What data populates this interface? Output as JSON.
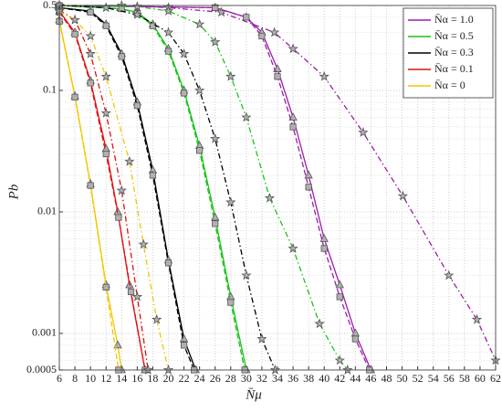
{
  "chart_data": {
    "type": "line",
    "x_label": "N̄μ",
    "y_label": "Pb",
    "xlim": [
      6,
      62
    ],
    "xticks": [
      6,
      8,
      10,
      12,
      14,
      16,
      18,
      20,
      22,
      24,
      26,
      28,
      30,
      32,
      34,
      36,
      38,
      40,
      42,
      44,
      46,
      48,
      50,
      52,
      54,
      56,
      58,
      60,
      62
    ],
    "ylim": [
      0.0005,
      0.5
    ],
    "yticks": [
      0.0005,
      0.001,
      0.01,
      0.1,
      0.5
    ],
    "log_y": true,
    "grid": true,
    "y_minor_grid": [
      0.0006,
      0.0007,
      0.0008,
      0.0009,
      0.002,
      0.003,
      0.004,
      0.005,
      0.006,
      0.007,
      0.008,
      0.009,
      0.02,
      0.03,
      0.04,
      0.05,
      0.06,
      0.07,
      0.08,
      0.09,
      0.2,
      0.3,
      0.4
    ],
    "legend_position": "upper right",
    "series": [
      {
        "name": "N̄α = 1.0",
        "color": "#9b1fa8",
        "curves": [
          {
            "style": "solid",
            "marker": "triangle",
            "x": [
              6,
              26,
              30,
              32,
              34,
              36,
              38,
              40,
              42,
              44,
              46
            ],
            "values": [
              0.5,
              0.48,
              0.4,
              0.3,
              0.15,
              0.06,
              0.02,
              0.006,
              0.0025,
              0.001,
              0.0005
            ]
          },
          {
            "style": "dashed",
            "marker": "square",
            "x": [
              6,
              26,
              30,
              32,
              34,
              36,
              38,
              40,
              42,
              44,
              45.8
            ],
            "values": [
              0.5,
              0.48,
              0.4,
              0.28,
              0.13,
              0.05,
              0.016,
              0.005,
              0.002,
              0.0009,
              0.0005
            ]
          },
          {
            "style": "dashdot",
            "marker": "star",
            "x": [
              6,
              14,
              20,
              26.8,
              33.6,
              36,
              40,
              45,
              50.1,
              56,
              59.6,
              62
            ],
            "values": [
              0.5,
              0.5,
              0.48,
              0.44,
              0.3,
              0.22,
              0.13,
              0.045,
              0.0135,
              0.003,
              0.0013,
              0.0006
            ]
          }
        ]
      },
      {
        "name": "N̄α = 0.5",
        "color": "#1cc21c",
        "curves": [
          {
            "style": "solid",
            "marker": "triangle",
            "x": [
              6,
              14,
              16,
              18,
              20,
              22,
              24,
              26,
              28,
              30
            ],
            "values": [
              0.5,
              0.47,
              0.44,
              0.35,
              0.22,
              0.1,
              0.035,
              0.009,
              0.002,
              0.0005
            ]
          },
          {
            "style": "dashed",
            "marker": "square",
            "x": [
              6,
              14,
              16,
              18,
              20,
              22,
              24,
              26,
              28,
              29.8
            ],
            "values": [
              0.5,
              0.47,
              0.43,
              0.34,
              0.21,
              0.095,
              0.032,
              0.008,
              0.0018,
              0.0005
            ]
          },
          {
            "style": "dashdot",
            "marker": "star",
            "x": [
              6,
              16,
              20,
              24,
              26,
              28,
              30,
              33,
              36,
              39.4,
              42,
              43
            ],
            "values": [
              0.5,
              0.49,
              0.45,
              0.35,
              0.25,
              0.13,
              0.06,
              0.013,
              0.005,
              0.0012,
              0.0006,
              0.0005
            ]
          }
        ]
      },
      {
        "name": "N̄α = 0.3",
        "color": "#000000",
        "curves": [
          {
            "style": "solid",
            "marker": "triangle",
            "x": [
              6,
              10,
              12,
              14,
              16,
              18,
              20,
              22,
              23.5
            ],
            "values": [
              0.48,
              0.45,
              0.35,
              0.2,
              0.08,
              0.022,
              0.004,
              0.0009,
              0.0005
            ]
          },
          {
            "style": "dashed",
            "marker": "square",
            "x": [
              6,
              10,
              12,
              14,
              16,
              18,
              20,
              22,
              23.3
            ],
            "values": [
              0.48,
              0.44,
              0.34,
              0.19,
              0.075,
              0.02,
              0.0038,
              0.0008,
              0.0005
            ]
          },
          {
            "style": "dashdot",
            "marker": "star",
            "x": [
              6,
              12,
              16,
              20,
              22,
              24,
              26,
              28,
              30,
              32,
              33.7
            ],
            "values": [
              0.5,
              0.48,
              0.42,
              0.3,
              0.2,
              0.1,
              0.04,
              0.012,
              0.003,
              0.0009,
              0.0005
            ]
          }
        ]
      },
      {
        "name": "N̄α = 0.1",
        "color": "#e01010",
        "curves": [
          {
            "style": "solid",
            "marker": "triangle",
            "x": [
              6,
              8,
              10,
              12,
              13.5,
              15,
              17
            ],
            "values": [
              0.45,
              0.3,
              0.12,
              0.033,
              0.01,
              0.0025,
              0.0005
            ]
          },
          {
            "style": "dashed",
            "marker": "square",
            "x": [
              6,
              8,
              10,
              12,
              13.6,
              15.2,
              17
            ],
            "values": [
              0.44,
              0.29,
              0.115,
              0.03,
              0.009,
              0.0022,
              0.0005
            ]
          },
          {
            "style": "dashdot",
            "marker": "star",
            "x": [
              6,
              8,
              10,
              12,
              14,
              16,
              17.4
            ],
            "values": [
              0.46,
              0.38,
              0.2,
              0.065,
              0.015,
              0.002,
              0.0005
            ]
          }
        ]
      },
      {
        "name": "N̄α = 0",
        "color": "#f0c800",
        "curves": [
          {
            "style": "solid",
            "marker": "triangle",
            "x": [
              6,
              8,
              10,
              12,
              13.5,
              14
            ],
            "values": [
              0.38,
              0.09,
              0.017,
              0.0025,
              0.0008,
              0.0005
            ]
          },
          {
            "style": "dashed",
            "marker": "square",
            "x": [
              6,
              8,
              10,
              12,
              13.6
            ],
            "values": [
              0.37,
              0.088,
              0.0165,
              0.0024,
              0.0005
            ]
          },
          {
            "style": "dashdot",
            "marker": "star",
            "x": [
              6,
              8,
              10,
              12,
              15,
              16.8,
              18.5,
              20
            ],
            "values": [
              0.45,
              0.38,
              0.28,
              0.13,
              0.026,
              0.0054,
              0.0013,
              0.0005
            ]
          }
        ]
      }
    ]
  }
}
